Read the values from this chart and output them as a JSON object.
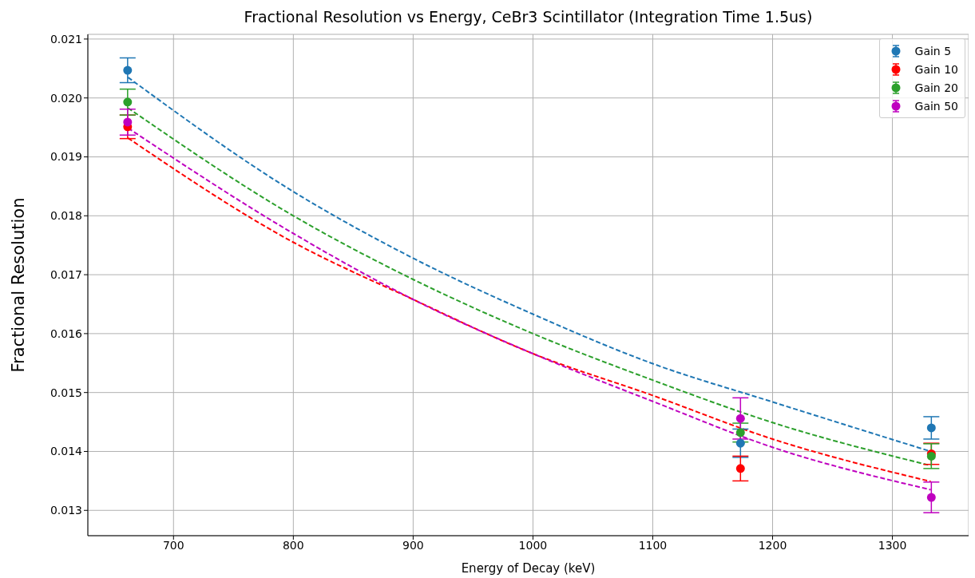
{
  "chart_data": {
    "type": "scatter",
    "title": "Fractional Resolution vs Energy, CeBr3 Scintillator (Integration Time 1.5us)",
    "xlabel": "Energy of Decay (keV)",
    "ylabel": "Fractional Resolution",
    "xlim": [
      628.5,
      1363.6
    ],
    "xticks": [
      700,
      800,
      900,
      1000,
      1100,
      1200,
      1300
    ],
    "ylim": [
      0.01257,
      0.02108
    ],
    "yticks": [
      0.013,
      0.014,
      0.015,
      0.016,
      0.017,
      0.018,
      0.019,
      {
        "value": 0.02,
        "label": "0.020"
      },
      0.021
    ],
    "grid": true,
    "legend": "top right",
    "marker": "circle",
    "series": [
      {
        "name": "Gain 5",
        "color": "#1f77b4",
        "x": [
          661.7,
          1173.2,
          1332.5
        ],
        "values": [
          0.02047,
          0.01414,
          0.0144
        ],
        "errors": [
          0.00021,
          0.00024,
          0.00019
        ]
      },
      {
        "name": "Gain 10",
        "color": "#ff0000",
        "x": [
          661.7,
          1173.2,
          1332.5
        ],
        "values": [
          0.01951,
          0.01371,
          0.01396
        ],
        "errors": [
          0.0002,
          0.00021,
          0.00018
        ]
      },
      {
        "name": "Gain 20",
        "color": "#2ca02c",
        "x": [
          661.7,
          1173.2,
          1332.5
        ],
        "values": [
          0.01993,
          0.01432,
          0.01392
        ],
        "errors": [
          0.00022,
          0.00016,
          0.00021
        ]
      },
      {
        "name": "Gain 50",
        "color": "#bf00bf",
        "x": [
          661.7,
          1173.2,
          1332.5
        ],
        "values": [
          0.01959,
          0.01456,
          0.01322
        ],
        "errors": [
          0.00022,
          0.00035,
          0.00026
        ]
      },
      {
        "type": "line",
        "color": "#1f77b4",
        "line_style": "dashed",
        "marker": "none",
        "x": [
          662,
          800,
          900,
          1000,
          1100,
          1200,
          1332
        ],
        "values": [
          0.02035,
          0.01841,
          0.01728,
          0.01633,
          0.01549,
          0.01484,
          0.014
        ]
      },
      {
        "type": "line",
        "color": "#ff0000",
        "line_style": "dashed",
        "marker": "none",
        "x": [
          662,
          800,
          900,
          1000,
          1100,
          1200,
          1332
        ],
        "values": [
          0.01932,
          0.01755,
          0.01658,
          0.01566,
          0.01495,
          0.01421,
          0.01349
        ]
      },
      {
        "type": "line",
        "color": "#2ca02c",
        "line_style": "dashed",
        "marker": "none",
        "x": [
          662,
          800,
          900,
          1000,
          1100,
          1200,
          1332
        ],
        "values": [
          0.01983,
          0.018,
          0.01692,
          0.016,
          0.01521,
          0.01449,
          0.01376
        ]
      },
      {
        "type": "line",
        "color": "#bf00bf",
        "line_style": "dashed",
        "marker": "none",
        "x": [
          662,
          800,
          900,
          1000,
          1100,
          1200,
          1332
        ],
        "values": [
          0.01949,
          0.0177,
          0.01658,
          0.01566,
          0.01485,
          0.01407,
          0.01335
        ]
      }
    ]
  }
}
